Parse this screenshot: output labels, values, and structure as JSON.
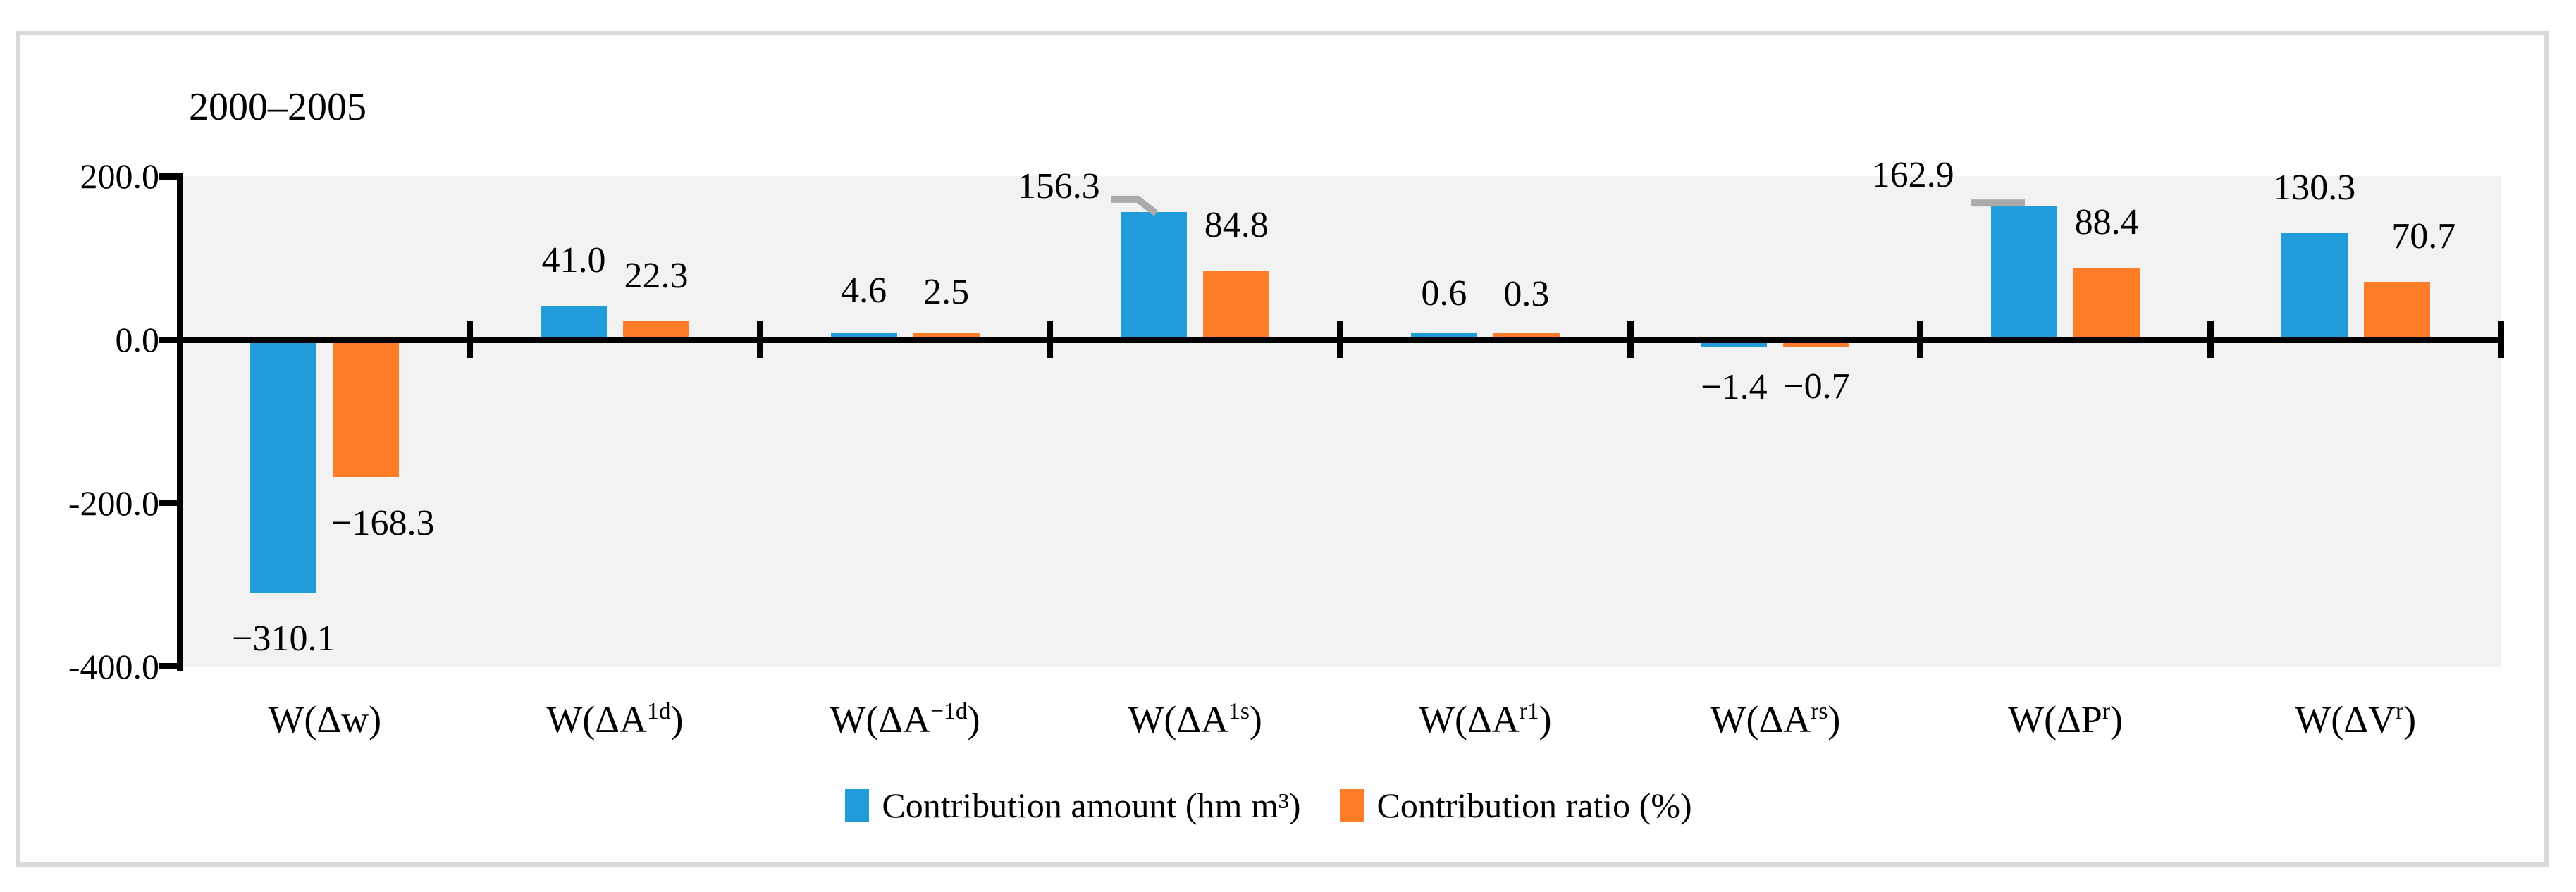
{
  "figure": {
    "title": "2000–2005"
  },
  "chart_data": {
    "type": "bar",
    "title": "2000–2005",
    "categories": [
      {
        "pre": "W(Δw",
        "sup": "",
        "post": ")"
      },
      {
        "pre": "W(ΔA",
        "sup": "1d",
        "post": ")"
      },
      {
        "pre": "W(ΔA",
        "sup": "−1d",
        "post": ")"
      },
      {
        "pre": "W(ΔA",
        "sup": "1s",
        "post": ")"
      },
      {
        "pre": "W(ΔA",
        "sup": "r1",
        "post": ")"
      },
      {
        "pre": "W(ΔA",
        "sup": "rs",
        "post": ")"
      },
      {
        "pre": "W(ΔP",
        "sup": "r",
        "post": ")"
      },
      {
        "pre": "W(ΔV",
        "sup": "r",
        "post": ")"
      }
    ],
    "series": [
      {
        "name": "Contribution amount (hm m³)",
        "color": "#1f9cd9",
        "values": [
          -310.1,
          41.0,
          4.6,
          156.3,
          0.6,
          -1.4,
          162.9,
          130.3
        ],
        "labels": [
          "−310.1",
          "41.0",
          "4.6",
          "156.3",
          "0.6",
          "−1.4",
          "162.9",
          "130.3"
        ]
      },
      {
        "name": "Contribution ratio (%)",
        "color": "#fd7e26",
        "values": [
          -168.3,
          22.3,
          2.5,
          84.8,
          0.3,
          -0.7,
          88.4,
          70.7
        ],
        "labels": [
          "−168.3",
          "22.3",
          "2.5",
          "84.8",
          "0.3",
          "−0.7",
          "88.4",
          "70.7"
        ]
      }
    ],
    "ylim": [
      -400,
      200
    ],
    "yticks": [
      {
        "value": 200,
        "label": "200.0"
      },
      {
        "value": 0,
        "label": "0.0"
      },
      {
        "value": -200,
        "label": "-200.0"
      },
      {
        "value": -400,
        "label": "-400.0"
      }
    ],
    "grid": false,
    "legend_position": "bottom",
    "plot_background": "#f2f2f2",
    "axis_color": "#000000",
    "leader_line_color": "#ababab",
    "label_color": "#000000"
  }
}
